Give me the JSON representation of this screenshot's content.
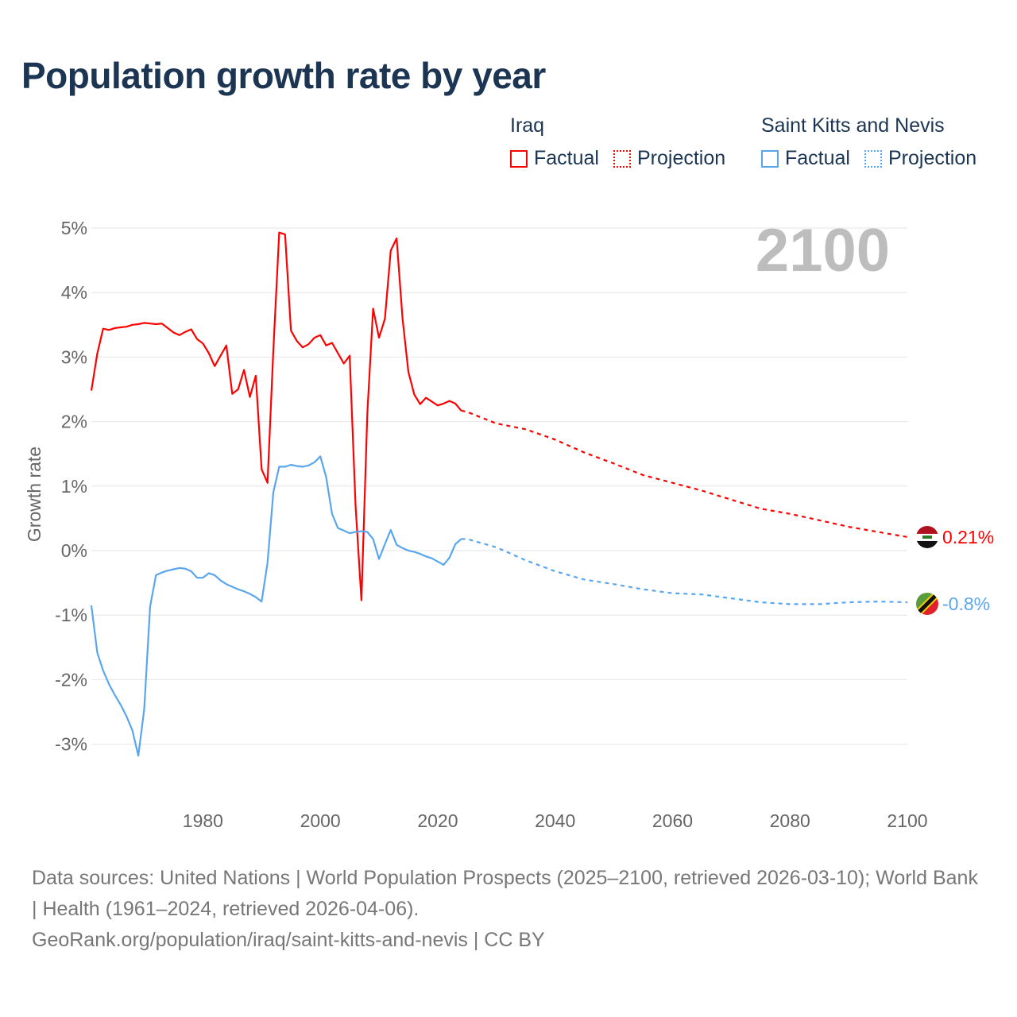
{
  "title": "Population growth rate by year",
  "big_year": "2100",
  "legend": [
    {
      "country": "Iraq",
      "factual": "Factual",
      "projection": "Projection",
      "color": "#ff0000"
    },
    {
      "country": "Saint Kitts and Nevis",
      "factual": "Factual",
      "projection": "Projection",
      "color": "#5aa6ee"
    }
  ],
  "end_labels": {
    "iraq": "0.21%",
    "skn": "-0.8%"
  },
  "footer": {
    "line1": "Data sources: United Nations | World Population Prospects (2025–2100, retrieved 2026-03-10); World Bank | Health (1961–2024, retrieved 2026-04-06).",
    "line2": "GeoRank.org/population/iraq/saint-kitts-and-nevis | CC BY"
  },
  "chart_data": {
    "type": "line",
    "title": "Population growth rate by year",
    "xlabel": "",
    "ylabel": "Growth rate",
    "xlim": [
      1961,
      2100
    ],
    "ylim": [
      -3.9,
      5.2
    ],
    "x_ticks": [
      1980,
      2000,
      2020,
      2040,
      2060,
      2080,
      2100
    ],
    "y_ticks": [
      -3,
      -2,
      -1,
      0,
      1,
      2,
      3,
      4,
      5
    ],
    "y_tick_labels": [
      "-3%",
      "-2%",
      "-1%",
      "0%",
      "1%",
      "2%",
      "3%",
      "4%",
      "5%"
    ],
    "grid": true,
    "series": [
      {
        "name": "Iraq Factual",
        "color": "#ff0000",
        "style": "solid",
        "start_year": 1961,
        "values": [
          2.48,
          3.05,
          3.44,
          3.42,
          3.45,
          3.46,
          3.47,
          3.5,
          3.51,
          3.53,
          3.52,
          3.51,
          3.52,
          3.45,
          3.38,
          3.34,
          3.39,
          3.43,
          3.28,
          3.21,
          3.06,
          2.86,
          3.02,
          3.18,
          2.43,
          2.5,
          2.8,
          2.38,
          2.71,
          1.26,
          1.05,
          3.1,
          4.93,
          4.9,
          3.41,
          3.25,
          3.15,
          3.2,
          3.3,
          3.34,
          3.18,
          3.22,
          3.06,
          2.9,
          3.02,
          0.7,
          -0.77,
          2.12,
          3.75,
          3.3,
          3.59,
          4.65,
          4.84,
          3.6,
          2.77,
          2.42,
          2.27,
          2.37,
          2.31,
          2.25,
          2.28,
          2.32,
          2.28,
          2.17
        ]
      },
      {
        "name": "Iraq Projection",
        "color": "#ff0000",
        "style": "dotted",
        "x": [
          2025,
          2030,
          2035,
          2040,
          2045,
          2050,
          2055,
          2060,
          2065,
          2070,
          2075,
          2080,
          2085,
          2090,
          2095,
          2100
        ],
        "values": [
          2.15,
          1.97,
          1.88,
          1.72,
          1.52,
          1.35,
          1.17,
          1.05,
          0.93,
          0.79,
          0.65,
          0.57,
          0.47,
          0.37,
          0.29,
          0.21
        ]
      },
      {
        "name": "Saint Kitts and Nevis Factual",
        "color": "#5aa6ee",
        "style": "solid",
        "start_year": 1961,
        "values": [
          -0.85,
          -1.58,
          -1.86,
          -2.07,
          -2.24,
          -2.39,
          -2.57,
          -2.79,
          -3.18,
          -2.46,
          -0.87,
          -0.38,
          -0.34,
          -0.31,
          -0.29,
          -0.27,
          -0.28,
          -0.32,
          -0.42,
          -0.42,
          -0.35,
          -0.38,
          -0.46,
          -0.52,
          -0.56,
          -0.6,
          -0.63,
          -0.67,
          -0.72,
          -0.79,
          -0.19,
          0.9,
          1.3,
          1.3,
          1.33,
          1.31,
          1.3,
          1.32,
          1.37,
          1.46,
          1.14,
          0.57,
          0.35,
          0.31,
          0.27,
          0.29,
          0.3,
          0.29,
          0.18,
          -0.13,
          0.1,
          0.32,
          0.09,
          0.04,
          0.0,
          -0.02,
          -0.05,
          -0.09,
          -0.12,
          -0.17,
          -0.22,
          -0.11,
          0.1,
          0.18
        ]
      },
      {
        "name": "Saint Kitts and Nevis Projection",
        "color": "#5aa6ee",
        "style": "dotted",
        "x": [
          2025,
          2030,
          2035,
          2040,
          2045,
          2050,
          2055,
          2060,
          2065,
          2070,
          2075,
          2080,
          2085,
          2090,
          2095,
          2100
        ],
        "values": [
          0.18,
          0.05,
          -0.15,
          -0.32,
          -0.45,
          -0.52,
          -0.6,
          -0.66,
          -0.68,
          -0.74,
          -0.8,
          -0.83,
          -0.83,
          -0.8,
          -0.79,
          -0.8
        ]
      }
    ]
  }
}
